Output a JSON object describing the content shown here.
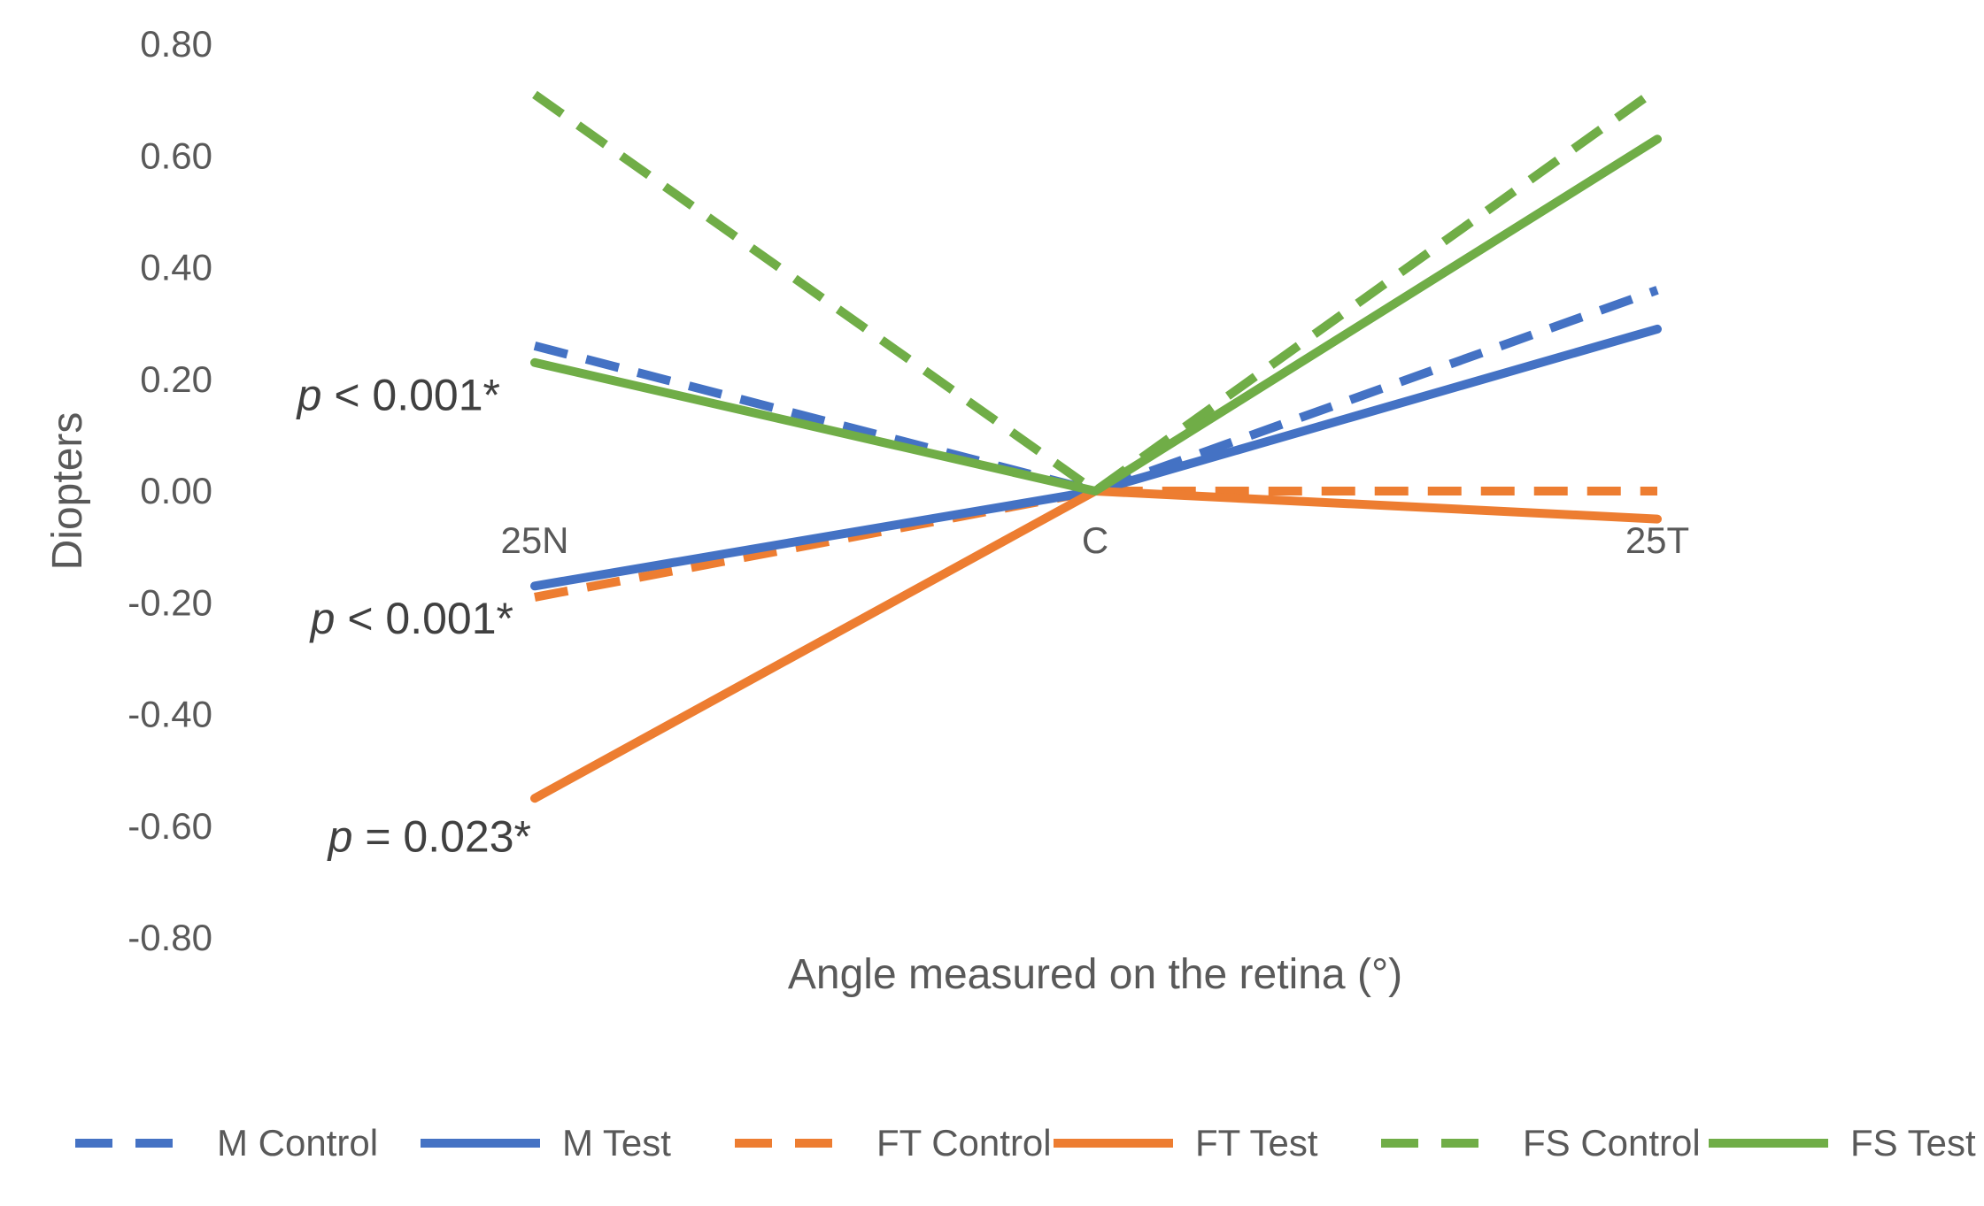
{
  "chart_data": {
    "type": "line",
    "title": "",
    "xlabel": "Angle measured on the retina (°)",
    "ylabel": "Diopters",
    "categories": [
      "25N",
      "C",
      "25T"
    ],
    "ylim": [
      -0.8,
      0.8
    ],
    "y_ticks": [
      "0.80",
      "0.60",
      "0.40",
      "0.20",
      "0.00",
      "-0.20",
      "-0.40",
      "-0.60",
      "-0.80"
    ],
    "y_tick_values": [
      0.8,
      0.6,
      0.4,
      0.2,
      0.0,
      -0.2,
      -0.4,
      -0.6,
      -0.8
    ],
    "grid": false,
    "legend_position": "bottom",
    "series": [
      {
        "name": "M Control",
        "color": "#4472C4",
        "dashed": true,
        "values": [
          0.26,
          0.0,
          0.36
        ]
      },
      {
        "name": "M Test",
        "color": "#4472C4",
        "dashed": false,
        "values": [
          -0.17,
          0.0,
          0.29
        ]
      },
      {
        "name": "FT Control",
        "color": "#ED7D31",
        "dashed": true,
        "values": [
          -0.19,
          0.0,
          0.0
        ]
      },
      {
        "name": "FT Test",
        "color": "#ED7D31",
        "dashed": false,
        "values": [
          -0.55,
          0.0,
          -0.05
        ]
      },
      {
        "name": "FS Control",
        "color": "#70AD47",
        "dashed": true,
        "values": [
          0.71,
          0.0,
          0.72
        ]
      },
      {
        "name": "FS Test",
        "color": "#70AD47",
        "dashed": false,
        "values": [
          0.23,
          0.0,
          0.63
        ]
      }
    ],
    "annotations": [
      {
        "italic": "p",
        "rest": " < 0.001*",
        "y": 0.17
      },
      {
        "italic": "p",
        "rest": " < 0.001*",
        "y": -0.23
      },
      {
        "italic": "p",
        "rest": " = 0.023*",
        "y": -0.62
      }
    ]
  }
}
